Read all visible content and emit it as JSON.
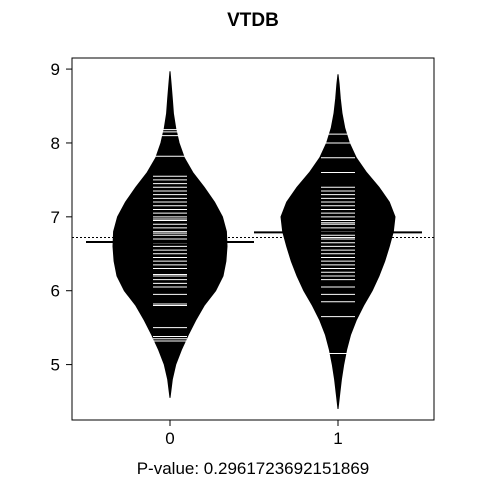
{
  "chart_data": {
    "type": "beanplot",
    "title": "VTDB",
    "xlabel": "P-value: 0.296172369215186​9",
    "ylabel": "",
    "categories": [
      "0",
      "1"
    ],
    "ylim": [
      4.25,
      9.15
    ],
    "yticks": [
      "5",
      "6",
      "7",
      "8",
      "9"
    ],
    "overall_mean": 6.72,
    "colors": {
      "bean": "#000000",
      "line": "#ffffff",
      "frame": "#000000"
    },
    "beans": [
      {
        "category": "0",
        "mean": 6.66,
        "density": [
          [
            4.55,
            0.0
          ],
          [
            4.8,
            0.04
          ],
          [
            5.0,
            0.1
          ],
          [
            5.2,
            0.2
          ],
          [
            5.4,
            0.32
          ],
          [
            5.6,
            0.45
          ],
          [
            5.8,
            0.6
          ],
          [
            6.0,
            0.8
          ],
          [
            6.2,
            0.93
          ],
          [
            6.4,
            0.98
          ],
          [
            6.6,
            1.0
          ],
          [
            6.8,
            0.99
          ],
          [
            7.0,
            0.92
          ],
          [
            7.2,
            0.78
          ],
          [
            7.4,
            0.6
          ],
          [
            7.6,
            0.4
          ],
          [
            7.8,
            0.25
          ],
          [
            8.0,
            0.16
          ],
          [
            8.2,
            0.1
          ],
          [
            8.4,
            0.06
          ],
          [
            8.6,
            0.04
          ],
          [
            8.8,
            0.02
          ],
          [
            8.97,
            0.0
          ]
        ],
        "observations": [
          5.32,
          5.35,
          5.38,
          5.5,
          5.8,
          5.82,
          5.95,
          6.05,
          6.1,
          6.15,
          6.2,
          6.22,
          6.3,
          6.35,
          6.4,
          6.45,
          6.5,
          6.55,
          6.6,
          6.65,
          6.7,
          6.75,
          6.78,
          6.8,
          6.85,
          6.9,
          6.95,
          6.97,
          7.0,
          7.05,
          7.1,
          7.15,
          7.2,
          7.25,
          7.3,
          7.35,
          7.4,
          7.45,
          7.5,
          7.55,
          7.82,
          8.1,
          8.15,
          8.18
        ]
      },
      {
        "category": "1",
        "mean": 6.79,
        "density": [
          [
            4.4,
            0.0
          ],
          [
            4.6,
            0.03
          ],
          [
            4.8,
            0.06
          ],
          [
            5.0,
            0.1
          ],
          [
            5.2,
            0.15
          ],
          [
            5.4,
            0.22
          ],
          [
            5.6,
            0.32
          ],
          [
            5.8,
            0.45
          ],
          [
            6.0,
            0.6
          ],
          [
            6.2,
            0.72
          ],
          [
            6.4,
            0.82
          ],
          [
            6.6,
            0.9
          ],
          [
            6.8,
            0.97
          ],
          [
            7.0,
            1.0
          ],
          [
            7.2,
            0.9
          ],
          [
            7.4,
            0.72
          ],
          [
            7.6,
            0.5
          ],
          [
            7.8,
            0.32
          ],
          [
            8.0,
            0.2
          ],
          [
            8.2,
            0.12
          ],
          [
            8.4,
            0.07
          ],
          [
            8.6,
            0.04
          ],
          [
            8.8,
            0.02
          ],
          [
            8.93,
            0.0
          ]
        ],
        "observations": [
          5.15,
          5.65,
          5.85,
          5.95,
          6.05,
          6.15,
          6.2,
          6.25,
          6.3,
          6.35,
          6.4,
          6.45,
          6.5,
          6.55,
          6.6,
          6.65,
          6.7,
          6.72,
          6.75,
          6.8,
          6.85,
          6.9,
          6.92,
          6.95,
          7.0,
          7.05,
          7.1,
          7.15,
          7.2,
          7.25,
          7.3,
          7.35,
          7.4,
          7.6,
          7.8,
          8.0,
          8.12
        ]
      }
    ]
  }
}
